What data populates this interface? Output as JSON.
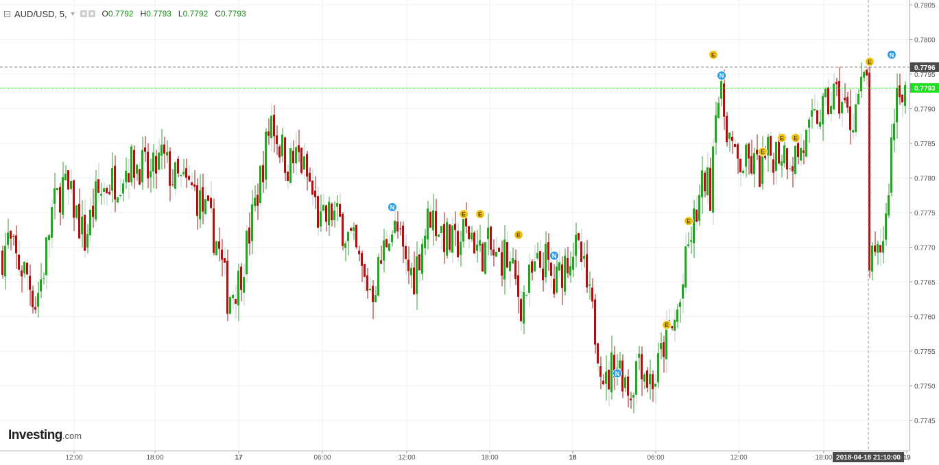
{
  "header": {
    "symbol": "AUD/USD, 5,",
    "open_label": "O",
    "open_value": "0.7792",
    "high_label": "H",
    "high_value": "0.7793",
    "low_label": "L",
    "low_value": "0.7792",
    "close_label": "C",
    "close_value": "0.7793"
  },
  "logo": {
    "brand": "Investing",
    "suffix": ".com"
  },
  "colors": {
    "up": "#2e9e2e",
    "down": "#a31616",
    "grid": "#eef0f3",
    "price_line": "#22cc22",
    "crosshair": "#aaaaaa",
    "event_E": "#f2c40f",
    "event_N": "#2b9be8",
    "axis_text": "#555555"
  },
  "chart_data": {
    "type": "candlestick",
    "instrument": "AUD/USD",
    "interval": "5",
    "ylim": [
      0.7743,
      0.7805
    ],
    "y_ticks": [
      "0.7805",
      "0.7800",
      "0.7795",
      "0.7790",
      "0.7785",
      "0.7780",
      "0.7775",
      "0.7770",
      "0.7765",
      "0.7760",
      "0.7755",
      "0.7750",
      "0.7745"
    ],
    "x_ticks": [
      "12:00",
      "18:00",
      "17",
      "06:00",
      "12:00",
      "18:00",
      "18",
      "06:00",
      "12:00",
      "18:00",
      "19"
    ],
    "price_markers": [
      {
        "label": "0.7796",
        "value": 0.7796,
        "style": "crosshair"
      },
      {
        "label": "0.7793",
        "value": 0.7793,
        "style": "last-price"
      }
    ],
    "crosshair_time": "2018-04-18 21:10:00",
    "price_path": [
      [
        0,
        0.7769
      ],
      [
        2,
        0.7771
      ],
      [
        5,
        0.7768
      ],
      [
        9,
        0.7766
      ],
      [
        12,
        0.7762
      ],
      [
        15,
        0.7767
      ],
      [
        18,
        0.7775
      ],
      [
        22,
        0.7779
      ],
      [
        26,
        0.7776
      ],
      [
        30,
        0.7771
      ],
      [
        34,
        0.7777
      ],
      [
        38,
        0.7779
      ],
      [
        42,
        0.778
      ],
      [
        46,
        0.7782
      ],
      [
        50,
        0.7782
      ],
      [
        54,
        0.778
      ],
      [
        58,
        0.7783
      ],
      [
        62,
        0.778
      ],
      [
        66,
        0.7779
      ],
      [
        70,
        0.7778
      ],
      [
        75,
        0.7774
      ],
      [
        78,
        0.7771
      ],
      [
        82,
        0.7763
      ],
      [
        86,
        0.7765
      ],
      [
        90,
        0.7772
      ],
      [
        94,
        0.778
      ],
      [
        98,
        0.7789
      ],
      [
        100,
        0.7786
      ],
      [
        104,
        0.7782
      ],
      [
        108,
        0.7783
      ],
      [
        112,
        0.7779
      ],
      [
        116,
        0.7773
      ],
      [
        120,
        0.7775
      ],
      [
        124,
        0.7773
      ],
      [
        128,
        0.777
      ],
      [
        132,
        0.7765
      ],
      [
        135,
        0.7764
      ],
      [
        138,
        0.7768
      ],
      [
        141,
        0.7773
      ],
      [
        144,
        0.7772
      ],
      [
        147,
        0.7767
      ],
      [
        150,
        0.7766
      ],
      [
        153,
        0.7771
      ],
      [
        156,
        0.7775
      ],
      [
        159,
        0.7773
      ],
      [
        162,
        0.7771
      ],
      [
        165,
        0.777
      ],
      [
        168,
        0.7772
      ],
      [
        171,
        0.7772
      ],
      [
        174,
        0.7769
      ],
      [
        177,
        0.777
      ],
      [
        180,
        0.7768
      ],
      [
        183,
        0.7769
      ],
      [
        186,
        0.7766
      ],
      [
        189,
        0.7762
      ],
      [
        192,
        0.7765
      ],
      [
        195,
        0.7767
      ],
      [
        198,
        0.7768
      ],
      [
        201,
        0.7764
      ],
      [
        205,
        0.7768
      ],
      [
        208,
        0.777
      ],
      [
        211,
        0.7768
      ],
      [
        214,
        0.7762
      ],
      [
        217,
        0.7756
      ],
      [
        220,
        0.775
      ],
      [
        223,
        0.7754
      ],
      [
        226,
        0.7752
      ],
      [
        229,
        0.7749
      ],
      [
        232,
        0.7755
      ],
      [
        235,
        0.7751
      ],
      [
        238,
        0.7751
      ],
      [
        241,
        0.7756
      ],
      [
        244,
        0.7758
      ],
      [
        247,
        0.7762
      ],
      [
        250,
        0.777
      ],
      [
        253,
        0.7775
      ],
      [
        256,
        0.778
      ],
      [
        258,
        0.7778
      ],
      [
        260,
        0.7792
      ],
      [
        262,
        0.7791
      ],
      [
        264,
        0.7788
      ],
      [
        267,
        0.7782
      ],
      [
        270,
        0.7782
      ],
      [
        273,
        0.7782
      ],
      [
        276,
        0.7781
      ],
      [
        279,
        0.7783
      ],
      [
        282,
        0.7784
      ],
      [
        285,
        0.7784
      ],
      [
        288,
        0.7783
      ],
      [
        291,
        0.7784
      ],
      [
        294,
        0.7786
      ],
      [
        297,
        0.7789
      ],
      [
        300,
        0.779
      ],
      [
        303,
        0.7792
      ],
      [
        306,
        0.7791
      ],
      [
        309,
        0.7788
      ],
      [
        312,
        0.7792
      ],
      [
        315,
        0.7794
      ],
      [
        316,
        0.7768
      ],
      [
        318,
        0.7767
      ],
      [
        320,
        0.777
      ],
      [
        322,
        0.7774
      ],
      [
        324,
        0.7785
      ],
      [
        326,
        0.7793
      ],
      [
        327,
        0.7794
      ],
      [
        328,
        0.7793
      ]
    ],
    "events": [
      {
        "type": "N",
        "index": 142,
        "value": 0.7775
      },
      {
        "type": "E",
        "index": 168,
        "value": 0.7774
      },
      {
        "type": "E",
        "index": 174,
        "value": 0.7774
      },
      {
        "type": "E",
        "index": 188,
        "value": 0.7771
      },
      {
        "type": "N",
        "index": 201,
        "value": 0.7768
      },
      {
        "type": "N",
        "index": 224,
        "value": 0.7751
      },
      {
        "type": "E",
        "index": 242,
        "value": 0.7758
      },
      {
        "type": "E",
        "index": 250,
        "value": 0.7773
      },
      {
        "type": "E",
        "index": 259,
        "value": 0.7797
      },
      {
        "type": "N",
        "index": 262,
        "value": 0.7794
      },
      {
        "type": "E",
        "index": 277,
        "value": 0.7783
      },
      {
        "type": "E",
        "index": 284,
        "value": 0.7785
      },
      {
        "type": "E",
        "index": 289,
        "value": 0.7785
      },
      {
        "type": "E",
        "index": 316,
        "value": 0.7796
      },
      {
        "type": "N",
        "index": 324,
        "value": 0.7797
      }
    ]
  }
}
